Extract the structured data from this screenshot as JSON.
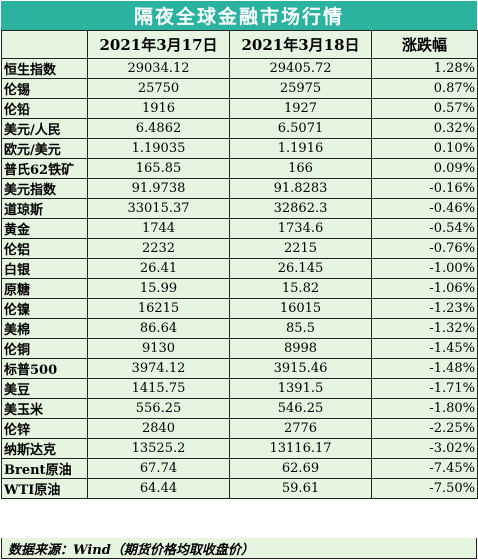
{
  "title": "隔夜全球金融市场行情",
  "headers": [
    "",
    "2021年3月17日",
    "2021年3月18日",
    "涨跌幅"
  ],
  "rows": [
    {
      "name": "恒生指数",
      "d1": "29034.12",
      "d2": "29405.72",
      "chg": "1.28%"
    },
    {
      "name": "伦锡",
      "d1": "25750",
      "d2": "25975",
      "chg": "0.87%"
    },
    {
      "name": "伦铅",
      "d1": "1916",
      "d2": "1927",
      "chg": "0.57%"
    },
    {
      "name": "美元/人民",
      "d1": "6.4862",
      "d2": "6.5071",
      "chg": "0.32%"
    },
    {
      "name": "欧元/美元",
      "d1": "1.19035",
      "d2": "1.1916",
      "chg": "0.10%"
    },
    {
      "name": "普氏62铁矿",
      "d1": "165.85",
      "d2": "166",
      "chg": "0.09%"
    },
    {
      "name": "美元指数",
      "d1": "91.9738",
      "d2": "91.8283",
      "chg": "-0.16%"
    },
    {
      "name": "道琼斯",
      "d1": "33015.37",
      "d2": "32862.3",
      "chg": "-0.46%"
    },
    {
      "name": "黄金",
      "d1": "1744",
      "d2": "1734.6",
      "chg": "-0.54%"
    },
    {
      "name": "伦铝",
      "d1": "2232",
      "d2": "2215",
      "chg": "-0.76%"
    },
    {
      "name": "白银",
      "d1": "26.41",
      "d2": "26.145",
      "chg": "-1.00%"
    },
    {
      "name": "原糖",
      "d1": "15.99",
      "d2": "15.82",
      "chg": "-1.06%"
    },
    {
      "name": "伦镍",
      "d1": "16215",
      "d2": "16015",
      "chg": "-1.23%"
    },
    {
      "name": "美棉",
      "d1": "86.64",
      "d2": "85.5",
      "chg": "-1.32%"
    },
    {
      "name": "伦铜",
      "d1": "9130",
      "d2": "8998",
      "chg": "-1.45%"
    },
    {
      "name": "标普500",
      "d1": "3974.12",
      "d2": "3915.46",
      "chg": "-1.48%"
    },
    {
      "name": "美豆",
      "d1": "1415.75",
      "d2": "1391.5",
      "chg": "-1.71%"
    },
    {
      "name": "美玉米",
      "d1": "556.25",
      "d2": "546.25",
      "chg": "-1.80%"
    },
    {
      "name": "伦锌",
      "d1": "2840",
      "d2": "2776",
      "chg": "-2.25%"
    },
    {
      "name": "纳斯达克",
      "d1": "13525.2",
      "d2": "13116.17",
      "chg": "-3.02%"
    },
    {
      "name": "Brent原油",
      "d1": "67.74",
      "d2": "62.69",
      "chg": "-7.45%"
    },
    {
      "name": "WTI原油",
      "d1": "64.44",
      "d2": "59.61",
      "chg": "-7.50%"
    }
  ],
  "footer": "数据来源：Wind（期货价格均取收盘价）",
  "colors": {
    "title_bg": "#2bb3a0",
    "table_bg": "#e6f5e0",
    "border": "#222222"
  }
}
